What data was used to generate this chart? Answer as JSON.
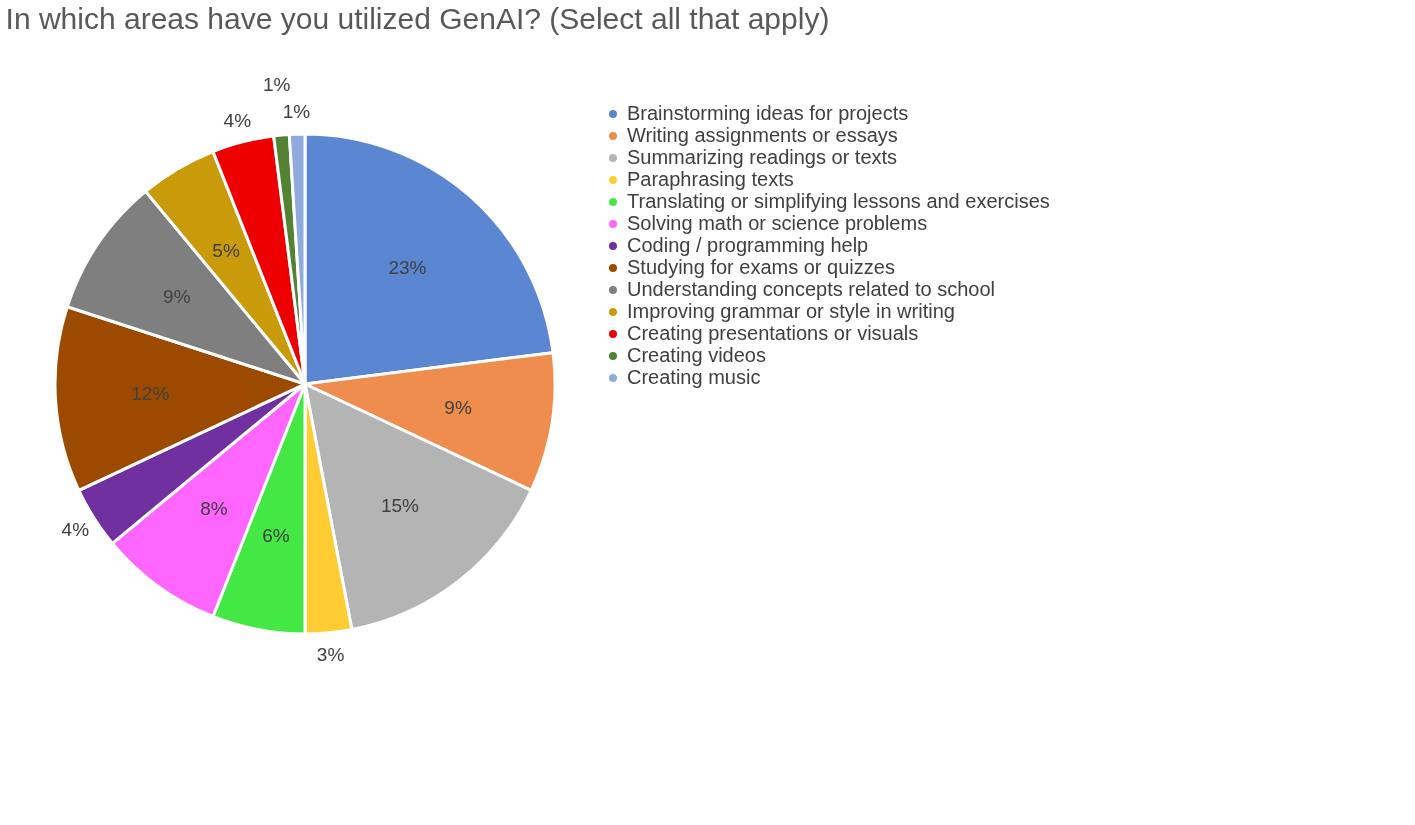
{
  "chart_data": {
    "type": "pie",
    "title": "In which areas have you utilized GenAI? (Select all that apply)",
    "categories": [
      "Brainstorming ideas for projects",
      "Writing assignments or essays",
      "Summarizing readings or texts",
      "Paraphrasing texts",
      "Translating or simplifying lessons and exercises",
      "Solving math or science problems",
      "Coding / programming help",
      "Studying for exams or quizzes",
      "Understanding concepts related to school",
      "Improving grammar or style in writing",
      "Creating presentations or visuals",
      "Creating videos",
      "Creating music"
    ],
    "values": [
      23,
      9,
      15,
      3,
      6,
      8,
      4,
      12,
      9,
      5,
      4,
      1,
      1
    ],
    "colors": [
      "#5b86d2",
      "#ef8d4e",
      "#b4b4b4",
      "#ffcc33",
      "#44e844",
      "#ff66ff",
      "#7030a0",
      "#9c4a00",
      "#7f7f7f",
      "#c99a0a",
      "#ee0000",
      "#548235",
      "#8faadc"
    ],
    "value_labels": [
      "23%",
      "9%",
      "15%",
      "3%",
      "6%",
      "8%",
      "4%",
      "12%",
      "9%",
      "5%",
      "4%",
      "1%",
      "1%"
    ],
    "legend": "right"
  }
}
